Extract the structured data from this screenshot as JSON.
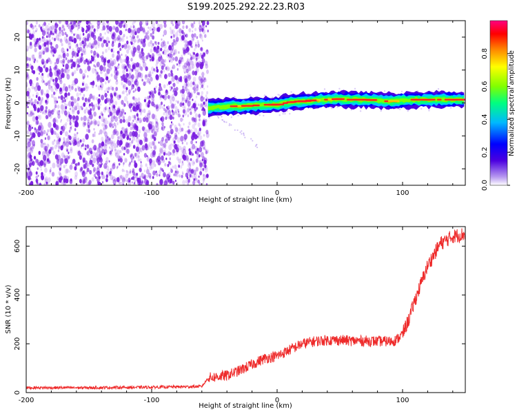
{
  "title": "S199.2025.292.22.23.R03",
  "colors": {
    "snr_line": "#ee2a2a",
    "noise": "#7a1de0",
    "background": "#ffffff",
    "axis": "#000000"
  },
  "chart_data": [
    {
      "type": "heatmap",
      "title": "S199.2025.292.22.23.R03",
      "xlabel": "Height of straight line (km)",
      "ylabel": "Frequency (Hz)",
      "xlim": [
        -200,
        150
      ],
      "ylim": [
        -25,
        25
      ],
      "x_ticks": [
        -200,
        -100,
        0,
        100
      ],
      "y_ticks": [
        -20,
        -10,
        0,
        10,
        20
      ],
      "x_tick_labels": [
        "-200",
        "-100",
        "0",
        "100"
      ],
      "y_tick_labels": [
        "-20",
        "-10",
        "0",
        "10",
        "20"
      ],
      "noise_region_x": [
        -200,
        -55
      ],
      "ridge": {
        "x": [
          -55,
          -40,
          -30,
          -20,
          -10,
          0,
          10,
          20,
          30,
          40,
          50,
          60,
          70,
          80,
          90,
          100,
          110,
          120,
          130,
          140,
          150
        ],
        "freq": [
          -1.5,
          -1.0,
          -1.0,
          -0.8,
          -0.6,
          -0.5,
          0.2,
          0.5,
          0.8,
          1.0,
          1.2,
          1.0,
          1.0,
          0.8,
          0.5,
          0.8,
          1.0,
          1.0,
          1.0,
          1.0,
          1.0
        ]
      },
      "colorbar": {
        "label": "Normalized spectral amplitude",
        "range": [
          0,
          1
        ],
        "ticks": [
          0.0,
          0.2,
          0.4,
          0.6,
          0.8
        ],
        "tick_labels": [
          "0.0",
          "0.2",
          "0.4",
          "0.6",
          "0.8"
        ]
      }
    },
    {
      "type": "line",
      "xlabel": "Height of straight line (km)",
      "ylabel": "SNR (10 * v/v)",
      "xlim": [
        -200,
        150
      ],
      "ylim": [
        0,
        680
      ],
      "x_ticks": [
        -200,
        -100,
        0,
        100
      ],
      "y_ticks": [
        0,
        200,
        400,
        600
      ],
      "x_tick_labels": [
        "-200",
        "-100",
        "0",
        "100"
      ],
      "y_tick_labels": [
        "0",
        "200",
        "400",
        "600"
      ],
      "series": [
        {
          "x": [
            -200,
            -150,
            -100,
            -60,
            -55,
            -40,
            -30,
            -20,
            -10,
            0,
            10,
            20,
            30,
            40,
            50,
            60,
            70,
            80,
            90,
            95,
            100,
            105,
            110,
            120,
            130,
            140,
            150
          ],
          "values": [
            20,
            20,
            22,
            25,
            60,
            70,
            90,
            115,
            140,
            150,
            175,
            200,
            210,
            215,
            215,
            212,
            212,
            210,
            210,
            215,
            240,
            300,
            380,
            520,
            610,
            640,
            650
          ]
        }
      ]
    }
  ]
}
